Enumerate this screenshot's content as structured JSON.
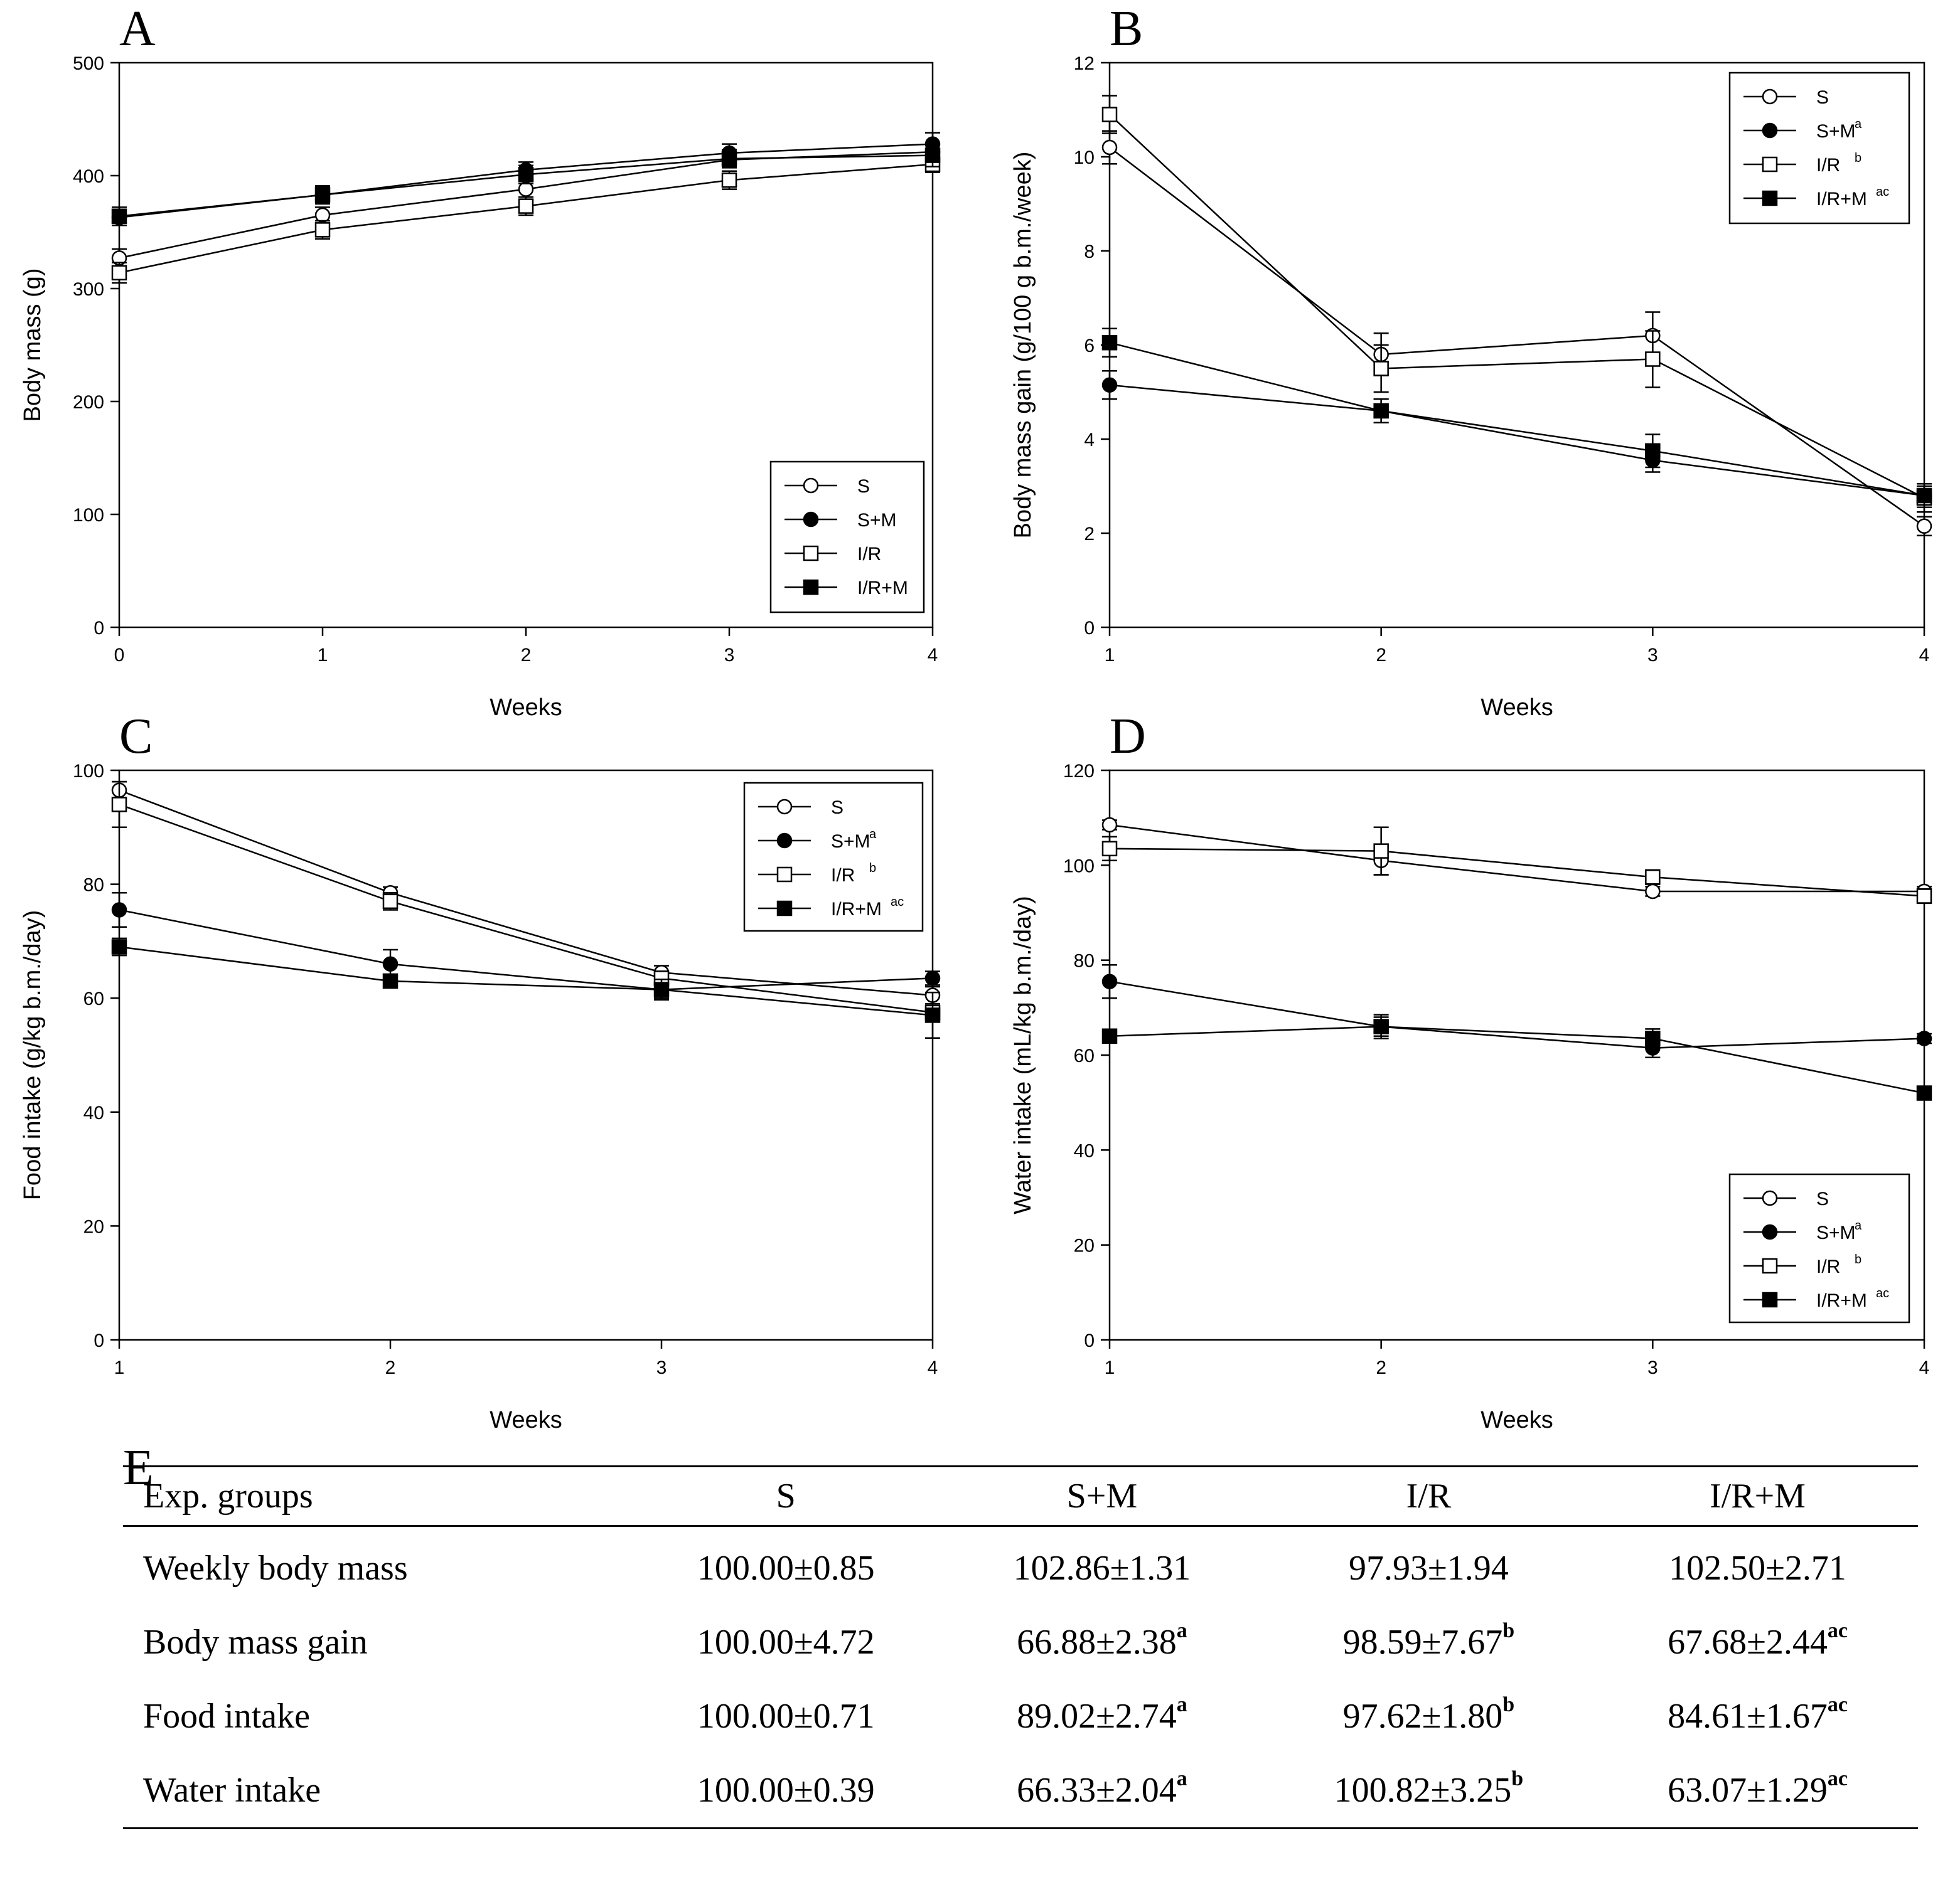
{
  "chart_data": [
    {
      "panel": "A",
      "type": "line",
      "xlabel": "Weeks",
      "ylabel": "Body mass (g)",
      "x": [
        0,
        1,
        2,
        3,
        4
      ],
      "xlim": [
        0,
        4
      ],
      "ylim": [
        0,
        500
      ],
      "xticks": [
        "0",
        "1",
        "2",
        "3",
        "4"
      ],
      "yticks": [
        "0",
        "100",
        "200",
        "300",
        "400",
        "500"
      ],
      "legend_position": "bottom-right",
      "series": [
        {
          "name": "S",
          "sup": "",
          "marker": "circle-open",
          "values": [
            327,
            365,
            388,
            414,
            421
          ],
          "errors": [
            8,
            7,
            7,
            6,
            7
          ]
        },
        {
          "name": "S+M",
          "sup": "",
          "marker": "circle-filled",
          "values": [
            363,
            383,
            405,
            420,
            428
          ],
          "errors": [
            7,
            7,
            7,
            8,
            10
          ]
        },
        {
          "name": "I/R",
          "sup": "",
          "marker": "square-open",
          "values": [
            314,
            352,
            373,
            396,
            410
          ],
          "errors": [
            9,
            8,
            8,
            8,
            7
          ]
        },
        {
          "name": "I/R+M",
          "sup": "",
          "marker": "square-filled",
          "values": [
            364,
            383,
            401,
            415,
            418
          ],
          "errors": [
            8,
            8,
            8,
            8,
            10
          ]
        }
      ]
    },
    {
      "panel": "B",
      "type": "line",
      "xlabel": "Weeks",
      "ylabel": "Body mass gain (g/100 g b.m./week)",
      "x": [
        1,
        2,
        3,
        4
      ],
      "xlim": [
        1,
        4
      ],
      "ylim": [
        0,
        12
      ],
      "xticks": [
        "1",
        "2",
        "3",
        "4"
      ],
      "yticks": [
        "0",
        "2",
        "4",
        "6",
        "8",
        "10",
        "12"
      ],
      "legend_position": "top-right",
      "series": [
        {
          "name": "S",
          "sup": "",
          "marker": "circle-open",
          "values": [
            10.2,
            5.8,
            6.2,
            2.15
          ],
          "errors": [
            0.35,
            0.45,
            0.5,
            0.2
          ]
        },
        {
          "name": "S+M",
          "sup": "a",
          "marker": "circle-filled",
          "values": [
            5.15,
            4.6,
            3.55,
            2.8
          ],
          "errors": [
            0.3,
            0.25,
            0.25,
            0.2
          ]
        },
        {
          "name": "I/R",
          "sup": "b",
          "marker": "square-open",
          "values": [
            10.9,
            5.5,
            5.7,
            2.75
          ],
          "errors": [
            0.4,
            0.5,
            0.6,
            0.3
          ]
        },
        {
          "name": "I/R+M",
          "sup": "ac",
          "marker": "square-filled",
          "values": [
            6.05,
            4.6,
            3.75,
            2.8
          ],
          "errors": [
            0.3,
            0.25,
            0.35,
            0.25
          ]
        }
      ]
    },
    {
      "panel": "C",
      "type": "line",
      "xlabel": "Weeks",
      "ylabel": "Food intake (g/kg b.m./day)",
      "x": [
        1,
        2,
        3,
        4
      ],
      "xlim": [
        1,
        4
      ],
      "ylim": [
        0,
        100
      ],
      "xticks": [
        "1",
        "2",
        "3",
        "4"
      ],
      "yticks": [
        "0",
        "20",
        "40",
        "60",
        "80",
        "100"
      ],
      "legend_position": "top-right",
      "series": [
        {
          "name": "S",
          "sup": "",
          "marker": "circle-open",
          "values": [
            96.5,
            78.5,
            64.5,
            60.5
          ],
          "errors": [
            1.5,
            1.0,
            1.2,
            1.5
          ]
        },
        {
          "name": "S+M",
          "sup": "a",
          "marker": "circle-filled",
          "values": [
            75.5,
            66,
            61.5,
            63.5
          ],
          "errors": [
            3.0,
            2.5,
            1.5,
            1.2
          ]
        },
        {
          "name": "I/R",
          "sup": "b",
          "marker": "square-open",
          "values": [
            94,
            77,
            63.5,
            57.5
          ],
          "errors": [
            4.0,
            1.5,
            1.2,
            1.5
          ]
        },
        {
          "name": "I/R+M",
          "sup": "ac",
          "marker": "square-filled",
          "values": [
            69,
            63,
            61.5,
            57
          ],
          "errors": [
            1.5,
            1.2,
            1.8,
            4.0
          ]
        }
      ]
    },
    {
      "panel": "D",
      "type": "line",
      "xlabel": "Weeks",
      "ylabel": "Water intake (mL/kg b.m./day)",
      "x": [
        1,
        2,
        3,
        4
      ],
      "xlim": [
        1,
        4
      ],
      "ylim": [
        0,
        120
      ],
      "xticks": [
        "1",
        "2",
        "3",
        "4"
      ],
      "yticks": [
        "0",
        "20",
        "40",
        "60",
        "80",
        "100",
        "120"
      ],
      "legend_position": "bottom-right",
      "series": [
        {
          "name": "S",
          "sup": "",
          "marker": "circle-open",
          "values": [
            108.5,
            101,
            94.5,
            94.5
          ],
          "errors": [
            1.0,
            3.0,
            1.0,
            1.0
          ]
        },
        {
          "name": "S+M",
          "sup": "a",
          "marker": "circle-filled",
          "values": [
            75.5,
            66,
            61.5,
            63.5
          ],
          "errors": [
            3.5,
            2.5,
            2.0,
            1.0
          ]
        },
        {
          "name": "I/R",
          "sup": "b",
          "marker": "square-open",
          "values": [
            103.5,
            103,
            97.5,
            93.5
          ],
          "errors": [
            2.5,
            5.0,
            1.5,
            1.5
          ]
        },
        {
          "name": "I/R+M",
          "sup": "ac",
          "marker": "square-filled",
          "values": [
            64,
            66,
            63.5,
            52
          ],
          "errors": [
            1.0,
            2.0,
            2.0,
            1.0
          ]
        }
      ]
    }
  ],
  "table": {
    "panel": "E",
    "headers": [
      "Exp. groups",
      "S",
      "S+M",
      "I/R",
      "I/R+M"
    ],
    "rows": [
      {
        "label": "Weekly body mass",
        "cells": [
          {
            "v": "100.00±0.85",
            "s": ""
          },
          {
            "v": "102.86±1.31",
            "s": ""
          },
          {
            "v": "97.93±1.94",
            "s": ""
          },
          {
            "v": "102.50±2.71",
            "s": ""
          }
        ]
      },
      {
        "label": "Body mass gain",
        "cells": [
          {
            "v": "100.00±4.72",
            "s": ""
          },
          {
            "v": "66.88±2.38",
            "s": "a"
          },
          {
            "v": "98.59±7.67",
            "s": "b"
          },
          {
            "v": "67.68±2.44",
            "s": "ac"
          }
        ]
      },
      {
        "label": "Food intake",
        "cells": [
          {
            "v": "100.00±0.71",
            "s": ""
          },
          {
            "v": "89.02±2.74",
            "s": "a"
          },
          {
            "v": "97.62±1.80",
            "s": "b"
          },
          {
            "v": "84.61±1.67",
            "s": "ac"
          }
        ]
      },
      {
        "label": "Water intake",
        "cells": [
          {
            "v": "100.00±0.39",
            "s": ""
          },
          {
            "v": "66.33±2.04",
            "s": "a"
          },
          {
            "v": "100.82±3.25",
            "s": "b"
          },
          {
            "v": "63.07±1.29",
            "s": "ac"
          }
        ]
      }
    ]
  }
}
